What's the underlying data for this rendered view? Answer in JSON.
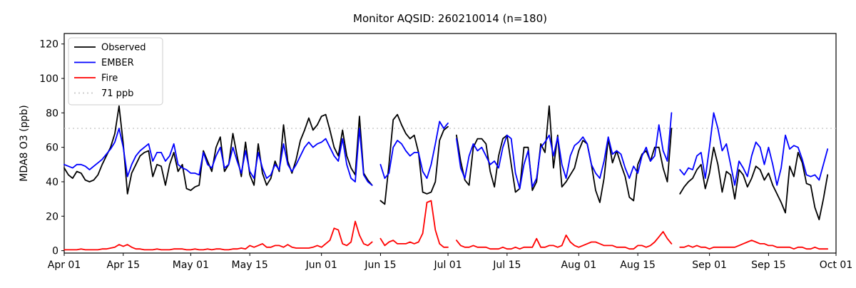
{
  "title": "Monitor AQSID: 260210014 (n=180)",
  "chart_data": {
    "type": "line",
    "title": "Monitor AQSID: 260210014 (n=180)",
    "xlabel": "",
    "ylabel": "MDA8 O3 (ppb)",
    "ylim": [
      0,
      120
    ],
    "y_ticks": [
      0,
      20,
      40,
      60,
      80,
      100,
      120
    ],
    "x_ticks": [
      {
        "label": "Apr 01",
        "day": 0
      },
      {
        "label": "Apr 15",
        "day": 14
      },
      {
        "label": "May 01",
        "day": 30
      },
      {
        "label": "May 15",
        "day": 44
      },
      {
        "label": "Jun 01",
        "day": 61
      },
      {
        "label": "Jun 15",
        "day": 75
      },
      {
        "label": "Jul 01",
        "day": 91
      },
      {
        "label": "Jul 15",
        "day": 105
      },
      {
        "label": "Aug 01",
        "day": 122
      },
      {
        "label": "Aug 15",
        "day": 136
      },
      {
        "label": "Sep 01",
        "day": 153
      },
      {
        "label": "Sep 15",
        "day": 167
      },
      {
        "label": "Oct 01",
        "day": 183
      }
    ],
    "x_day_span": 183,
    "threshold": {
      "label": "71 ppb",
      "value": 71,
      "color": "#c8c8c8",
      "dash": "2 4"
    },
    "legend_position": "upper-left",
    "grid": false,
    "series": [
      {
        "name": "Observed",
        "color": "#000000",
        "values": [
          48,
          44,
          42,
          46,
          45,
          41,
          40,
          41,
          44,
          50,
          55,
          60,
          68,
          84,
          62,
          33,
          45,
          50,
          55,
          57,
          58,
          43,
          50,
          49,
          38,
          50,
          57,
          46,
          50,
          36,
          35,
          37,
          38,
          58,
          52,
          46,
          60,
          66,
          46,
          50,
          68,
          55,
          43,
          63,
          44,
          38,
          62,
          45,
          38,
          42,
          52,
          46,
          73,
          52,
          45,
          53,
          64,
          70,
          77,
          70,
          73,
          78,
          79,
          70,
          60,
          55,
          70,
          55,
          48,
          44,
          78,
          45,
          41,
          38,
          null,
          29,
          27,
          50,
          76,
          79,
          73,
          68,
          65,
          67,
          57,
          34,
          33,
          34,
          40,
          64,
          70,
          72,
          null,
          67,
          52,
          41,
          38,
          60,
          65,
          65,
          62,
          46,
          37,
          55,
          65,
          67,
          50,
          34,
          36,
          60,
          60,
          35,
          40,
          62,
          57,
          84,
          48,
          67,
          37,
          40,
          44,
          48,
          58,
          64,
          62,
          50,
          35,
          28,
          42,
          65,
          51,
          58,
          50,
          43,
          31,
          29,
          50,
          56,
          58,
          52,
          60,
          60,
          48,
          40,
          71,
          null,
          33,
          37,
          40,
          42,
          47,
          50,
          36,
          45,
          60,
          50,
          34,
          46,
          44,
          30,
          47,
          44,
          37,
          42,
          49,
          47,
          41,
          45,
          38,
          33,
          28,
          22,
          49,
          43,
          57,
          51,
          39,
          38,
          25,
          18,
          30,
          44
        ]
      },
      {
        "name": "EMBER",
        "color": "#0000ff",
        "values": [
          50,
          49,
          48,
          50,
          50,
          49,
          47,
          49,
          51,
          53,
          56,
          59,
          63,
          71,
          60,
          43,
          50,
          55,
          58,
          60,
          62,
          52,
          57,
          57,
          52,
          55,
          62,
          50,
          48,
          47,
          45,
          45,
          44,
          57,
          50,
          48,
          55,
          60,
          48,
          50,
          60,
          52,
          45,
          58,
          46,
          42,
          57,
          48,
          42,
          44,
          50,
          47,
          62,
          50,
          46,
          50,
          55,
          60,
          63,
          60,
          62,
          63,
          65,
          60,
          55,
          52,
          65,
          50,
          42,
          40,
          71,
          44,
          40,
          38,
          null,
          50,
          42,
          45,
          60,
          64,
          62,
          58,
          55,
          57,
          57,
          46,
          42,
          50,
          62,
          75,
          71,
          74,
          null,
          65,
          48,
          42,
          55,
          62,
          58,
          60,
          55,
          50,
          52,
          48,
          60,
          67,
          65,
          45,
          36,
          50,
          58,
          37,
          42,
          60,
          63,
          67,
          55,
          66,
          50,
          42,
          55,
          61,
          63,
          66,
          62,
          50,
          45,
          42,
          52,
          66,
          56,
          58,
          56,
          48,
          42,
          49,
          45,
          55,
          60,
          52,
          55,
          73,
          58,
          52,
          80,
          null,
          47,
          44,
          48,
          47,
          55,
          57,
          42,
          60,
          80,
          71,
          58,
          62,
          50,
          38,
          52,
          48,
          43,
          55,
          63,
          60,
          50,
          60,
          50,
          38,
          48,
          67,
          59,
          61,
          60,
          53,
          44,
          43,
          44,
          41,
          50,
          59
        ]
      },
      {
        "name": "Fire",
        "color": "#ff0000",
        "values": [
          0.5,
          0.5,
          0.5,
          0.5,
          1,
          0.5,
          0.5,
          0.5,
          0.5,
          1,
          1,
          1.5,
          2,
          3.5,
          2.5,
          3.5,
          2,
          1,
          1,
          0.5,
          0.5,
          0.5,
          1,
          0.5,
          0.5,
          0.5,
          1,
          1,
          1,
          0.5,
          0.5,
          1,
          0.5,
          0.5,
          1,
          0.5,
          1,
          1,
          0.5,
          0.5,
          1,
          1,
          1.5,
          1,
          3,
          2,
          3,
          4,
          2,
          2,
          3,
          3,
          2,
          3.5,
          2,
          1.5,
          1.5,
          1.5,
          1.5,
          2,
          3,
          2,
          4,
          6,
          13,
          12,
          4,
          3,
          5,
          17,
          9,
          4,
          3,
          5,
          null,
          7,
          3,
          5,
          6,
          4,
          4,
          4,
          5,
          4,
          5,
          10,
          28,
          29,
          12,
          4,
          2,
          2,
          null,
          6,
          3,
          2,
          2,
          3,
          2,
          2,
          2,
          1,
          1,
          1,
          2,
          1,
          1,
          2,
          1,
          2,
          2,
          2,
          7,
          2,
          2,
          3,
          3,
          2,
          3,
          9,
          5,
          3,
          2,
          3,
          4,
          5,
          5,
          4,
          3,
          3,
          3,
          2,
          2,
          2,
          1,
          1,
          3,
          3,
          2,
          3,
          5,
          8,
          11,
          7,
          4,
          null,
          2,
          2,
          3,
          2,
          3,
          2,
          2,
          1,
          2,
          2,
          2,
          2,
          2,
          2,
          3,
          4,
          5,
          6,
          5,
          4,
          4,
          3,
          3,
          2,
          2,
          2,
          2,
          1,
          2,
          2,
          1,
          1,
          2,
          1,
          1,
          1
        ]
      }
    ]
  },
  "colors": {
    "observed": "#000000",
    "ember": "#0000ff",
    "fire": "#ff0000",
    "threshold": "#c8c8c8",
    "axis": "#000000",
    "legend_border": "#cccccc",
    "background": "#ffffff"
  },
  "legend": {
    "items": [
      {
        "label": "Observed",
        "color": "#000000",
        "dash": ""
      },
      {
        "label": "EMBER",
        "color": "#0000ff",
        "dash": ""
      },
      {
        "label": "Fire",
        "color": "#ff0000",
        "dash": ""
      },
      {
        "label": "71 ppb",
        "color": "#c8c8c8",
        "dash": "2 4"
      }
    ]
  }
}
